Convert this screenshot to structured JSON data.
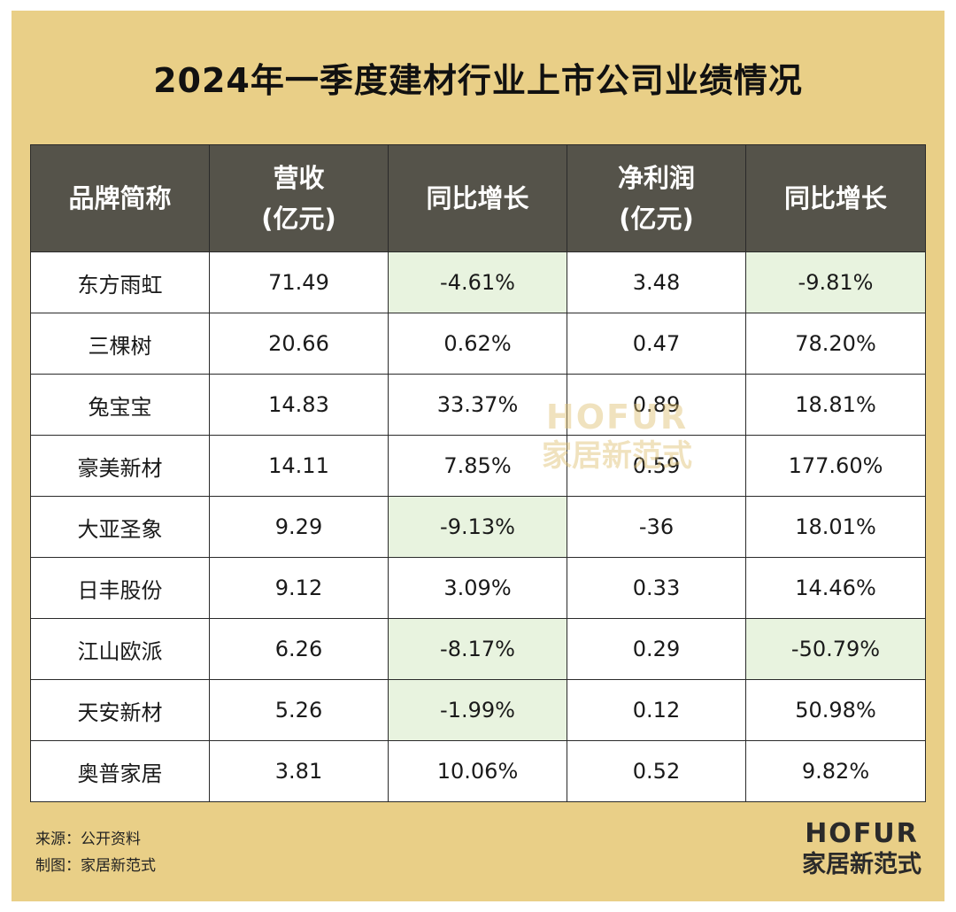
{
  "title": "2024年一季度建材行业上市公司业绩情况",
  "chart_data": {
    "type": "table",
    "columns": [
      {
        "line1": "品牌简称",
        "line2": ""
      },
      {
        "line1": "营收",
        "line2": "(亿元)"
      },
      {
        "line1": "同比增长",
        "line2": ""
      },
      {
        "line1": "净利润",
        "line2": "(亿元)"
      },
      {
        "line1": "同比增长",
        "line2": ""
      }
    ],
    "rows": [
      {
        "brand": "东方雨虹",
        "revenue": "71.49",
        "revenue_yoy": "-4.61%",
        "profit": "3.48",
        "profit_yoy": "-9.81%"
      },
      {
        "brand": "三棵树",
        "revenue": "20.66",
        "revenue_yoy": "0.62%",
        "profit": "0.47",
        "profit_yoy": "78.20%"
      },
      {
        "brand": "兔宝宝",
        "revenue": "14.83",
        "revenue_yoy": "33.37%",
        "profit": "0.89",
        "profit_yoy": "18.81%"
      },
      {
        "brand": "豪美新材",
        "revenue": "14.11",
        "revenue_yoy": "7.85%",
        "profit": "0.59",
        "profit_yoy": "177.60%"
      },
      {
        "brand": "大亚圣象",
        "revenue": "9.29",
        "revenue_yoy": "-9.13%",
        "profit": "-36",
        "profit_yoy": "18.01%"
      },
      {
        "brand": "日丰股份",
        "revenue": "9.12",
        "revenue_yoy": "3.09%",
        "profit": "0.33",
        "profit_yoy": "14.46%"
      },
      {
        "brand": "江山欧派",
        "revenue": "6.26",
        "revenue_yoy": "-8.17%",
        "profit": "0.29",
        "profit_yoy": "-50.79%"
      },
      {
        "brand": "天安新材",
        "revenue": "5.26",
        "revenue_yoy": "-1.99%",
        "profit": "0.12",
        "profit_yoy": "50.98%"
      },
      {
        "brand": "奥普家居",
        "revenue": "3.81",
        "revenue_yoy": "10.06%",
        "profit": "0.52",
        "profit_yoy": "9.82%"
      }
    ]
  },
  "watermark": {
    "en": "HOFUR",
    "cn": "家居新范式"
  },
  "footer": {
    "source": "来源：公开资料",
    "credit": "制图：家居新范式"
  },
  "logo": {
    "en": "HOFUR",
    "cn": "家居新范式"
  },
  "colors": {
    "background": "#e9cf87",
    "header_bg": "#55534a",
    "negative_highlight": "#e8f3df"
  }
}
